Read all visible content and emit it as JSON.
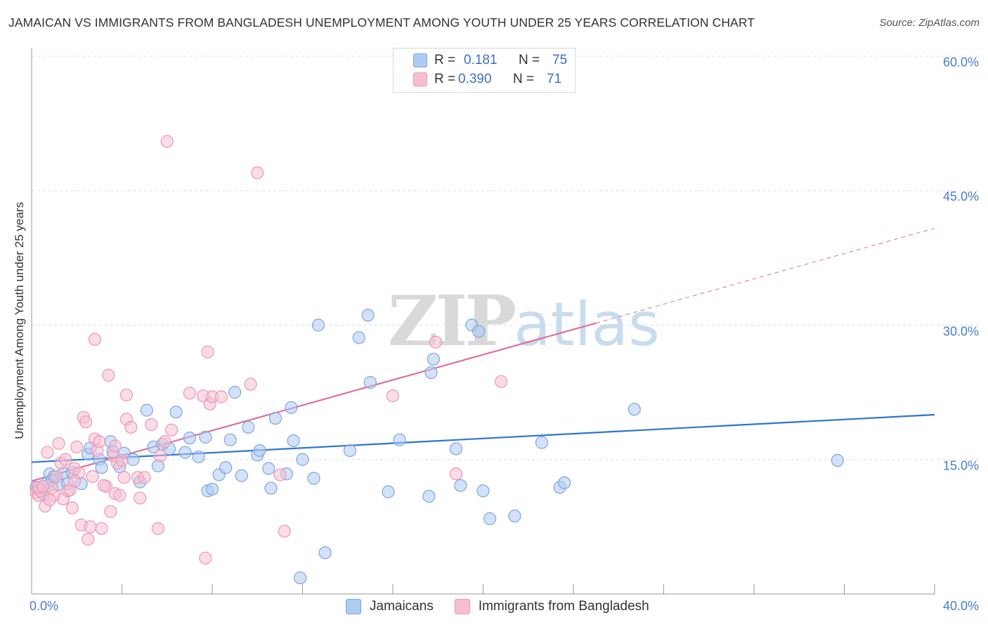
{
  "title": "JAMAICAN VS IMMIGRANTS FROM BANGLADESH UNEMPLOYMENT AMONG YOUTH UNDER 25 YEARS CORRELATION CHART",
  "source": "Source: ZipAtlas.com",
  "watermark": {
    "zip": "ZIP",
    "atlas": "atlas"
  },
  "legend_top": [
    {
      "r_label": "R =",
      "r_value": "0.181",
      "n_label": "N =",
      "n_value": "75"
    },
    {
      "r_label": "R =",
      "r_value": "0.390",
      "n_label": "N =",
      "n_value": "71"
    }
  ],
  "colors": {
    "jamaicans_fill": "#aecbf2",
    "jamaicans_stroke": "#7ea6de",
    "jamaicans_line": "#2f73d4",
    "bangladesh_fill": "#f6bfd1",
    "bangladesh_stroke": "#eb97b3",
    "bangladesh_line": "#e0709a",
    "tick_label": "#4a7cc9",
    "grid": "#dddddd"
  },
  "chart_data": {
    "type": "scatter",
    "title": "JAMAICAN VS IMMIGRANTS FROM BANGLADESH UNEMPLOYMENT AMONG YOUTH UNDER 25 YEARS CORRELATION CHART",
    "xlabel": "",
    "ylabel": "Unemployment Among Youth under 25 years",
    "xlim": [
      0,
      40
    ],
    "ylim": [
      0,
      60
    ],
    "x_tick_labels": [
      "0.0%",
      "40.0%"
    ],
    "y_ticks": [
      15,
      30,
      45,
      60
    ],
    "y_tick_labels": [
      "15.0%",
      "30.0%",
      "45.0%",
      "60.0%"
    ],
    "grid": "horizontal dashed",
    "legend_position": "bottom-center",
    "series": [
      {
        "name": "Jamaicans",
        "r": 0.181,
        "n": 75,
        "trend": {
          "x": [
            0,
            40
          ],
          "y": [
            14.7,
            20.0
          ],
          "dashed_extension": false
        },
        "points": [
          [
            0.3,
            11.6
          ],
          [
            0.4,
            11.8
          ],
          [
            0.5,
            11.2
          ],
          [
            0.7,
            12.4
          ],
          [
            0.8,
            13.4
          ],
          [
            0.9,
            12.7
          ],
          [
            1.0,
            13.1
          ],
          [
            1.2,
            12.2
          ],
          [
            1.4,
            13.5
          ],
          [
            1.6,
            12.3
          ],
          [
            1.8,
            13.6
          ],
          [
            2.2,
            12.3
          ],
          [
            2.5,
            15.6
          ],
          [
            2.6,
            16.3
          ],
          [
            3.0,
            15.0
          ],
          [
            3.1,
            14.1
          ],
          [
            3.5,
            17.0
          ],
          [
            3.6,
            15.9
          ],
          [
            3.9,
            14.2
          ],
          [
            4.1,
            15.7
          ],
          [
            4.5,
            15.0
          ],
          [
            4.8,
            12.5
          ],
          [
            5.1,
            20.5
          ],
          [
            5.4,
            16.4
          ],
          [
            5.6,
            14.3
          ],
          [
            5.8,
            16.7
          ],
          [
            6.1,
            16.2
          ],
          [
            6.4,
            20.3
          ],
          [
            6.8,
            15.8
          ],
          [
            7.0,
            17.4
          ],
          [
            7.4,
            15.3
          ],
          [
            7.7,
            17.5
          ],
          [
            7.8,
            11.5
          ],
          [
            8.0,
            11.7
          ],
          [
            8.3,
            13.3
          ],
          [
            8.6,
            14.1
          ],
          [
            8.8,
            17.2
          ],
          [
            9.0,
            22.5
          ],
          [
            9.3,
            13.2
          ],
          [
            9.6,
            18.6
          ],
          [
            10.0,
            15.5
          ],
          [
            10.1,
            16.0
          ],
          [
            10.5,
            14.0
          ],
          [
            10.6,
            11.8
          ],
          [
            10.8,
            19.6
          ],
          [
            11.3,
            13.4
          ],
          [
            11.5,
            20.8
          ],
          [
            11.6,
            17.1
          ],
          [
            11.9,
            1.8
          ],
          [
            12.0,
            15.0
          ],
          [
            12.5,
            12.9
          ],
          [
            12.7,
            30.0
          ],
          [
            13.0,
            4.6
          ],
          [
            14.1,
            16.0
          ],
          [
            14.5,
            28.6
          ],
          [
            14.9,
            31.1
          ],
          [
            15.0,
            23.6
          ],
          [
            15.8,
            11.4
          ],
          [
            16.3,
            17.2
          ],
          [
            17.6,
            10.9
          ],
          [
            17.7,
            24.7
          ],
          [
            17.8,
            26.2
          ],
          [
            18.8,
            16.2
          ],
          [
            19.0,
            12.1
          ],
          [
            19.5,
            30.0
          ],
          [
            19.8,
            29.3
          ],
          [
            20.0,
            11.5
          ],
          [
            20.3,
            8.4
          ],
          [
            21.4,
            8.7
          ],
          [
            22.6,
            16.9
          ],
          [
            23.4,
            11.9
          ],
          [
            23.6,
            12.4
          ],
          [
            26.7,
            20.6
          ],
          [
            35.7,
            14.9
          ],
          [
            0.2,
            11.9
          ]
        ]
      },
      {
        "name": "Immigrants from Bangladesh",
        "r": 0.39,
        "n": 71,
        "trend": {
          "x": [
            0,
            40
          ],
          "y": [
            12.6,
            40.8
          ],
          "solid_until_x": 25,
          "dashed_extension": true
        },
        "points": [
          [
            0.2,
            11.3
          ],
          [
            0.3,
            11.0
          ],
          [
            0.4,
            11.5
          ],
          [
            0.6,
            9.8
          ],
          [
            0.7,
            15.8
          ],
          [
            0.9,
            11.8
          ],
          [
            1.0,
            11.0
          ],
          [
            1.1,
            13.1
          ],
          [
            1.2,
            16.8
          ],
          [
            1.3,
            14.6
          ],
          [
            1.4,
            10.6
          ],
          [
            1.6,
            11.5
          ],
          [
            1.7,
            11.6
          ],
          [
            1.8,
            9.6
          ],
          [
            1.9,
            14.0
          ],
          [
            2.0,
            16.4
          ],
          [
            2.2,
            7.7
          ],
          [
            2.3,
            19.7
          ],
          [
            2.4,
            19.2
          ],
          [
            2.5,
            6.1
          ],
          [
            2.6,
            7.5
          ],
          [
            2.7,
            13.1
          ],
          [
            2.8,
            17.3
          ],
          [
            2.8,
            28.4
          ],
          [
            2.9,
            16.0
          ],
          [
            3.0,
            17.0
          ],
          [
            3.1,
            7.3
          ],
          [
            3.3,
            12.0
          ],
          [
            3.4,
            24.4
          ],
          [
            3.5,
            9.2
          ],
          [
            3.6,
            15.4
          ],
          [
            3.7,
            11.2
          ],
          [
            3.7,
            16.5
          ],
          [
            3.8,
            14.6
          ],
          [
            3.9,
            11.0
          ],
          [
            4.0,
            14.9
          ],
          [
            4.1,
            13.0
          ],
          [
            4.2,
            19.5
          ],
          [
            4.2,
            22.2
          ],
          [
            4.4,
            18.6
          ],
          [
            4.7,
            13.0
          ],
          [
            4.8,
            10.7
          ],
          [
            5.0,
            13.0
          ],
          [
            5.3,
            18.9
          ],
          [
            5.6,
            7.3
          ],
          [
            5.7,
            15.4
          ],
          [
            5.9,
            17.0
          ],
          [
            6.0,
            50.5
          ],
          [
            6.2,
            18.3
          ],
          [
            7.0,
            22.4
          ],
          [
            7.6,
            22.1
          ],
          [
            7.7,
            4.0
          ],
          [
            7.8,
            27.0
          ],
          [
            7.9,
            21.2
          ],
          [
            8.0,
            22.0
          ],
          [
            8.4,
            22.0
          ],
          [
            9.7,
            23.4
          ],
          [
            10.0,
            47.0
          ],
          [
            11.0,
            13.3
          ],
          [
            11.2,
            7.0
          ],
          [
            17.9,
            28.1
          ],
          [
            16.0,
            22.1
          ],
          [
            20.8,
            23.7
          ],
          [
            18.8,
            13.4
          ],
          [
            0.3,
            11.9
          ],
          [
            1.5,
            15.0
          ],
          [
            2.1,
            13.5
          ],
          [
            0.5,
            12.0
          ],
          [
            0.8,
            10.5
          ],
          [
            1.9,
            12.6
          ],
          [
            3.2,
            12.1
          ]
        ]
      }
    ]
  }
}
